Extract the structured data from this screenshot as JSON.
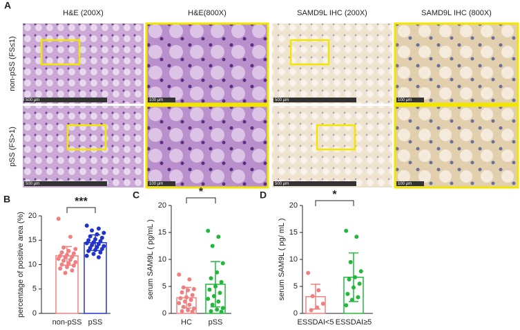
{
  "panel_a": {
    "label": "A",
    "columns": [
      "H&E (200X)",
      "H&E(800X)",
      "SAMD9L IHC (200X)",
      "SAMD9L IHC (800X)"
    ],
    "rows": [
      "non-pSS (FS≤1)",
      "pSS (FS>1)"
    ],
    "scale_bars": [
      [
        "500 µm",
        "100 µm",
        "500 µm",
        "100 µm"
      ],
      [
        "500 µm",
        "100 µm",
        "500 µm",
        "100 µm"
      ]
    ]
  },
  "chart_data": [
    {
      "type": "bar",
      "panel": "B",
      "ylabel": "percentage of positive area (%)",
      "categories": [
        "non-pSS",
        "pSS"
      ],
      "values": [
        11.8,
        14.5
      ],
      "errors": [
        1.9,
        1.6
      ],
      "colors": [
        "#f08080",
        "#2233cc"
      ],
      "points": [
        [
          19.4,
          15.7,
          13.5,
          13.2,
          12.8,
          12.5,
          12.3,
          12.0,
          11.8,
          11.6,
          11.5,
          11.2,
          11.0,
          10.8,
          10.5,
          10.3,
          10.0,
          9.8,
          9.5,
          9.2,
          8.8,
          8.3
        ],
        [
          18.0,
          17.4,
          17.0,
          16.5,
          16.2,
          15.8,
          15.5,
          15.2,
          15.0,
          14.8,
          14.6,
          14.4,
          14.2,
          14.0,
          13.8,
          13.6,
          13.4,
          13.2,
          13.0,
          12.8,
          12.5,
          12.2,
          11.8,
          11.5
        ]
      ],
      "significance": "***",
      "ylim": [
        0,
        20
      ],
      "yticks": [
        0,
        5,
        10,
        15,
        20
      ]
    },
    {
      "type": "bar",
      "panel": "C",
      "ylabel": "serum SAM9L ( pg/mL )",
      "categories": [
        "HC",
        "pSS"
      ],
      "values": [
        2.9,
        5.4
      ],
      "errors": [
        1.9,
        4.2
      ],
      "colors": [
        "#f08080",
        "#22b83a"
      ],
      "points": [
        [
          7.2,
          6.3,
          4.8,
          4.5,
          4.3,
          3.9,
          3.4,
          3.0,
          2.8,
          2.5,
          2.2,
          1.9,
          1.6,
          1.2,
          0.9,
          0.6,
          0.4,
          0.3
        ],
        [
          15.3,
          14.2,
          12.5,
          9.3,
          7.6,
          6.5,
          5.8,
          5.0,
          4.4,
          3.8,
          3.2,
          2.7,
          2.2,
          1.6,
          1.0,
          0.7,
          0.4,
          0.3
        ]
      ],
      "significance": "*",
      "ylim": [
        0,
        20
      ],
      "yticks": [
        0,
        5,
        10,
        15,
        20
      ]
    },
    {
      "type": "bar",
      "panel": "D",
      "ylabel": "serum SAM9L ( pg/ mL )",
      "categories": [
        "ESSDAI<5",
        "ESSDAI≥5"
      ],
      "values": [
        3.1,
        6.7
      ],
      "errors": [
        2.3,
        4.5
      ],
      "colors": [
        "#f08080",
        "#22b83a"
      ],
      "points": [
        [
          7.5,
          4.3,
          3.2,
          1.8,
          1.1,
          0.6
        ],
        [
          15.3,
          14.2,
          9.5,
          7.8,
          6.7,
          6.3,
          5.5,
          4.8,
          3.6,
          3.0,
          2.5,
          1.5
        ]
      ],
      "significance": "*",
      "ylim": [
        0,
        20
      ],
      "yticks": [
        0,
        5,
        10,
        15,
        20
      ]
    }
  ]
}
